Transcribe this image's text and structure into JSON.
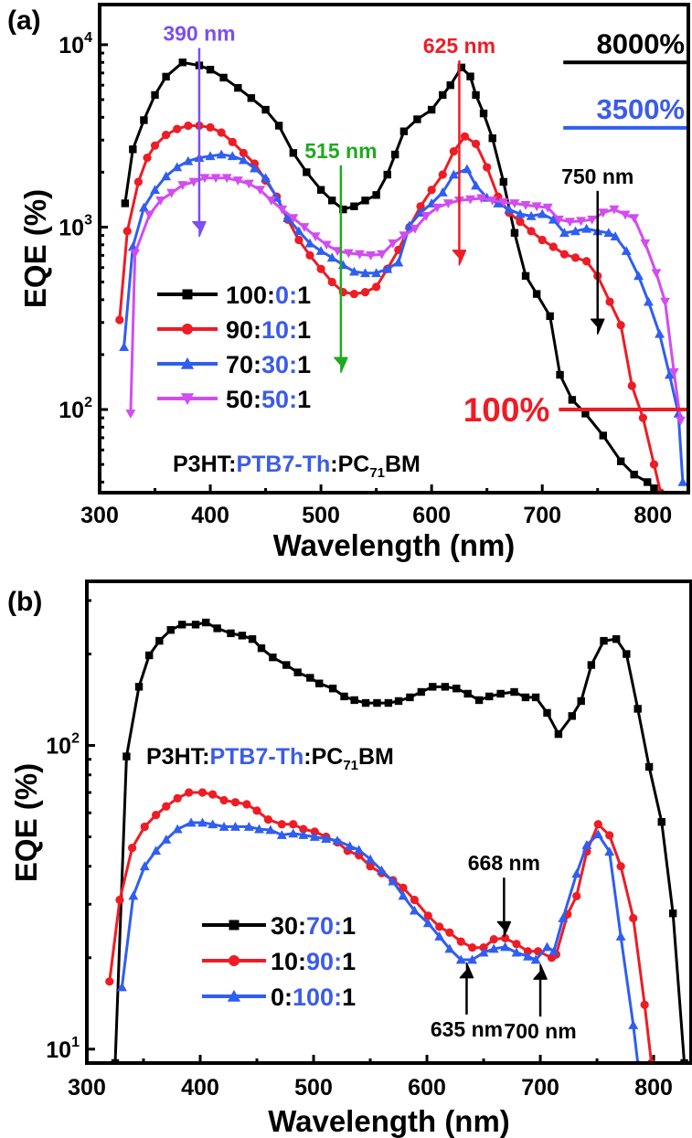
{
  "colors": {
    "black": "#000000",
    "red": "#ee1c25",
    "blue": "#2f5ef0",
    "magenta": "#d24cf0",
    "purple": "#7b4ff0",
    "green": "#1faa1f",
    "text_blue": "#3b5ce8"
  },
  "chart_data": [
    {
      "type": "line",
      "panel_label": "(a)",
      "xlabel": "Wavelength (nm)",
      "ylabel": "EQE (%)",
      "xlim": [
        300,
        832
      ],
      "ylim": [
        35,
        16600
      ],
      "yscale": "log",
      "x_ticks": [
        "300",
        "400",
        "500",
        "600",
        "700",
        "800"
      ],
      "y_ticks": [
        {
          "base": "10",
          "exp": "2",
          "value": 100
        },
        {
          "base": "10",
          "exp": "3",
          "value": 1000
        },
        {
          "base": "10",
          "exp": "4",
          "value": 10000
        }
      ],
      "grid": false,
      "legend_position": "center-left",
      "blend_label": [
        {
          "text": "P3HT:",
          "color": "black"
        },
        {
          "text": "PTB7-Th",
          "color": "text_blue"
        },
        {
          "text": ":PC",
          "color": "black"
        },
        {
          "text": "71",
          "color": "black",
          "sub": true
        },
        {
          "text": "BM",
          "color": "black"
        }
      ],
      "series": [
        {
          "name": "100:0:1",
          "color": "black",
          "marker": "square",
          "x": [
            323,
            330,
            340,
            350,
            360,
            375,
            390,
            400,
            412,
            425,
            437,
            450,
            462,
            475,
            487,
            500,
            510,
            520,
            530,
            540,
            550,
            560,
            567,
            575,
            587,
            600,
            610,
            617,
            627,
            635,
            640,
            647,
            655,
            665,
            675,
            685,
            695,
            707,
            716,
            727,
            739,
            755,
            771,
            783,
            795,
            801
          ],
          "y": [
            1350,
            2670,
            3860,
            5300,
            6680,
            8000,
            7700,
            7300,
            6600,
            5800,
            5100,
            4400,
            3600,
            2550,
            2000,
            1600,
            1400,
            1250,
            1300,
            1400,
            1500,
            1940,
            2500,
            3350,
            3900,
            4400,
            5300,
            6000,
            7500,
            6700,
            5300,
            4200,
            3070,
            1770,
            930,
            540,
            430,
            325,
            155,
            113,
            95,
            72,
            52,
            44,
            40,
            37
          ]
        },
        {
          "name": "90:10:1",
          "color": "red",
          "marker": "circle",
          "x": [
            318,
            325,
            335,
            343,
            350,
            360,
            370,
            380,
            390,
            400,
            410,
            420,
            430,
            440,
            450,
            460,
            470,
            480,
            490,
            500,
            510,
            520,
            530,
            540,
            550,
            560,
            570,
            580,
            590,
            600,
            610,
            620,
            630,
            640,
            650,
            660,
            670,
            680,
            690,
            700,
            710,
            720,
            730,
            740,
            750,
            761,
            771,
            781,
            791,
            801,
            807
          ],
          "y": [
            310,
            950,
            1770,
            2400,
            2800,
            3200,
            3450,
            3600,
            3600,
            3520,
            3300,
            2930,
            2550,
            2230,
            1800,
            1470,
            1100,
            850,
            700,
            590,
            500,
            440,
            430,
            440,
            470,
            590,
            750,
            1000,
            1300,
            1600,
            1940,
            2600,
            3140,
            2860,
            2130,
            1470,
            1200,
            1070,
            950,
            850,
            780,
            710,
            680,
            650,
            540,
            390,
            290,
            135,
            90,
            50,
            35
          ]
        },
        {
          "name": "70:30:1",
          "color": "blue",
          "marker": "triangle-up",
          "x": [
            322,
            330,
            340,
            350,
            360,
            370,
            380,
            390,
            400,
            410,
            420,
            430,
            440,
            450,
            460,
            470,
            480,
            490,
            500,
            510,
            520,
            530,
            540,
            550,
            560,
            570,
            580,
            590,
            600,
            610,
            620,
            632,
            640,
            650,
            660,
            670,
            680,
            690,
            700,
            710,
            720,
            730,
            740,
            750,
            760,
            766,
            776,
            787,
            796,
            806,
            815,
            823,
            827
          ],
          "y": [
            220,
            780,
            1280,
            1600,
            1900,
            2130,
            2300,
            2400,
            2450,
            2500,
            2450,
            2330,
            2100,
            1860,
            1450,
            1120,
            950,
            815,
            740,
            680,
            620,
            570,
            560,
            560,
            590,
            640,
            1020,
            1200,
            1350,
            1550,
            1940,
            2080,
            1690,
            1450,
            1350,
            1250,
            1180,
            1150,
            1180,
            1100,
            930,
            950,
            980,
            950,
            930,
            890,
            740,
            540,
            390,
            260,
            155,
            95,
            40
          ]
        },
        {
          "name": "50:50:1",
          "color": "magenta",
          "marker": "triangle-down",
          "x": [
            328,
            332,
            345,
            355,
            365,
            375,
            385,
            395,
            405,
            415,
            425,
            435,
            445,
            455,
            465,
            475,
            485,
            495,
            505,
            515,
            525,
            535,
            545,
            555,
            565,
            575,
            585,
            595,
            605,
            615,
            625,
            635,
            645,
            655,
            665,
            675,
            685,
            695,
            705,
            715,
            725,
            735,
            745,
            755,
            765,
            775,
            783,
            793,
            803,
            811,
            819,
            825
          ],
          "y": [
            95,
            720,
            1170,
            1400,
            1540,
            1700,
            1770,
            1860,
            1860,
            1860,
            1800,
            1730,
            1600,
            1400,
            1250,
            1120,
            1000,
            890,
            800,
            740,
            720,
            710,
            700,
            710,
            815,
            900,
            980,
            1150,
            1280,
            1350,
            1400,
            1420,
            1440,
            1400,
            1370,
            1350,
            1320,
            1300,
            1280,
            1100,
            1070,
            1080,
            1100,
            1200,
            1250,
            1170,
            1120,
            815,
            560,
            390,
            160,
            87
          ]
        }
      ],
      "annotations": [
        {
          "label": "390 nm",
          "color": "purple",
          "x": 390,
          "y_from": 9600,
          "y_to": 890
        },
        {
          "label": "515 nm",
          "color": "green",
          "x": 518,
          "y_from": 2180,
          "y_to": 160
        },
        {
          "label": "625 nm",
          "color": "red",
          "x": 625,
          "y_from": 8200,
          "y_to": 620
        },
        {
          "label": "750 nm",
          "color": "black",
          "x": 750,
          "y_from": 1580,
          "y_to": 260
        }
      ],
      "reference_lines": [
        {
          "label": "8000%",
          "color": "black",
          "label_color": "black",
          "y": 8000,
          "x_from": 719,
          "label_position": "above"
        },
        {
          "label": "3500%",
          "color": "blue",
          "label_color": "text_blue",
          "y": 3500,
          "x_from": 719,
          "label_position": "above"
        },
        {
          "label": "100%",
          "color": "red",
          "label_color": "red",
          "y": 100,
          "x_from": 715,
          "label_position": "left"
        }
      ]
    },
    {
      "type": "line",
      "panel_label": "(b)",
      "xlabel": "Wavelength (nm)",
      "ylabel": "EQE (%)",
      "xlim": [
        300,
        833
      ],
      "ylim": [
        9,
        347
      ],
      "yscale": "log",
      "x_ticks": [
        "300",
        "400",
        "500",
        "600",
        "700",
        "800"
      ],
      "y_ticks": [
        {
          "base": "10",
          "exp": "1",
          "value": 10
        },
        {
          "base": "10",
          "exp": "2",
          "value": 100
        }
      ],
      "grid": false,
      "legend_position": "bottom-left",
      "blend_label": [
        {
          "text": "P3HT:",
          "color": "black"
        },
        {
          "text": "PTB7-Th",
          "color": "text_blue"
        },
        {
          "text": ":PC",
          "color": "black"
        },
        {
          "text": "71",
          "color": "black",
          "sub": true
        },
        {
          "text": "BM",
          "color": "black"
        }
      ],
      "series": [
        {
          "name": "30:70:1",
          "color": "black",
          "marker": "square",
          "x": [
            325,
            335,
            346,
            355,
            364,
            374,
            384,
            396,
            405,
            415,
            427,
            437,
            446,
            454,
            464,
            476,
            486,
            497,
            505,
            517,
            527,
            536,
            546,
            556,
            566,
            575,
            585,
            595,
            605,
            616,
            626,
            636,
            646,
            655,
            665,
            677,
            687,
            696,
            706,
            716,
            728,
            736,
            745,
            756,
            767,
            776,
            786,
            796,
            807,
            817,
            827
          ],
          "y": [
            9,
            92,
            156,
            198,
            221,
            240,
            250,
            250,
            254,
            243,
            234,
            230,
            224,
            209,
            195,
            184,
            174,
            167,
            160,
            154,
            145,
            141,
            138,
            138,
            138,
            140,
            144,
            150,
            156,
            156,
            154,
            148,
            141,
            145,
            148,
            150,
            144,
            144,
            128,
            109,
            125,
            140,
            184,
            221,
            224,
            200,
            132,
            85,
            56,
            28,
            9
          ]
        },
        {
          "name": "10:90:1",
          "color": "red",
          "marker": "circle",
          "x": [
            320,
            329,
            340,
            351,
            361,
            370,
            380,
            390,
            402,
            411,
            421,
            431,
            441,
            450,
            460,
            472,
            482,
            491,
            501,
            511,
            521,
            530,
            540,
            550,
            560,
            570,
            579,
            589,
            601,
            611,
            620,
            630,
            640,
            650,
            659,
            669,
            679,
            689,
            698,
            710,
            714,
            724,
            732,
            741,
            751,
            761,
            771,
            782,
            792,
            798
          ],
          "y": [
            16.7,
            31,
            46,
            54,
            59,
            63,
            67,
            70,
            70,
            69,
            66,
            65,
            64,
            61,
            57,
            55,
            55,
            53,
            52,
            50,
            48,
            45,
            43.5,
            40,
            38,
            36,
            34,
            31,
            27.5,
            25.3,
            24.2,
            22.6,
            21.6,
            21.6,
            23,
            23.2,
            22.2,
            21,
            21,
            20,
            20.5,
            27.8,
            31.9,
            44.7,
            55,
            50.6,
            40,
            27,
            14,
            9
          ]
        },
        {
          "name": "0:100:1",
          "color": "blue",
          "marker": "triangle-up",
          "x": [
            331,
            341,
            351,
            361,
            370,
            380,
            392,
            402,
            411,
            421,
            431,
            443,
            452,
            462,
            472,
            482,
            491,
            501,
            511,
            521,
            532,
            540,
            550,
            560,
            570,
            579,
            589,
            601,
            611,
            620,
            630,
            640,
            650,
            659,
            669,
            679,
            689,
            696,
            706,
            712,
            720,
            732,
            741,
            751,
            761,
            771,
            782,
            786
          ],
          "y": [
            16,
            32,
            40,
            45,
            49,
            53,
            55.7,
            55.7,
            55,
            54,
            54,
            54,
            53,
            52.7,
            50.7,
            51.3,
            50.7,
            50,
            49.3,
            48.6,
            46.6,
            45.3,
            42.2,
            38.8,
            35.7,
            32,
            28.6,
            26,
            23.5,
            21.4,
            19.7,
            19.7,
            20.8,
            21.4,
            21.7,
            20.8,
            20.2,
            19.7,
            21.7,
            21,
            27,
            37.8,
            47,
            51,
            44.7,
            23.5,
            12,
            9
          ]
        }
      ],
      "annotations": [
        {
          "label": "668 nm",
          "color": "black",
          "x": 668,
          "y_from": 36.7,
          "y_to": 23.5
        },
        {
          "label": "635 nm",
          "color": "black",
          "x": 635,
          "y_from": 13,
          "y_to": 19.2
        },
        {
          "label": "700 nm",
          "color": "black",
          "x": 700,
          "y_from": 12.8,
          "y_to": 19
        }
      ],
      "reference_lines": []
    }
  ]
}
